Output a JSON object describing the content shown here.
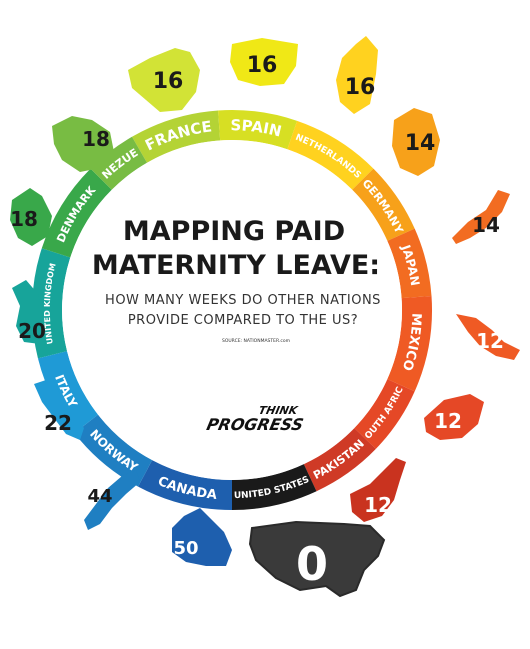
{
  "title_line1": "MAPPING PAID",
  "title_line2": "MATERNITY LEAVE:",
  "subtitle_line1": "HOW MANY WEEKS DO OTHER NATIONS",
  "subtitle_line2": "PROVIDE COMPARED TO THE US?",
  "source": "SOURCE: NATIONMASTER.com",
  "logo_line1": "THINK",
  "logo_line2": "PROGRESS",
  "countries": [
    {
      "name": "FRANCE",
      "weeks": "16",
      "color": "#b4d335"
    },
    {
      "name": "SPAIN",
      "weeks": "16",
      "color": "#d7df23"
    },
    {
      "name": "NETHERLANDS",
      "weeks": "16",
      "color": "#ffd21f"
    },
    {
      "name": "GERMANY",
      "weeks": "14",
      "color": "#f7a11a"
    },
    {
      "name": "JAPAN",
      "weeks": "14",
      "color": "#f26c21"
    },
    {
      "name": "MEXICO",
      "weeks": "12",
      "color": "#ef5a24"
    },
    {
      "name": "SOUTH AFRICA",
      "weeks": "12",
      "color": "#e54826"
    },
    {
      "name": "PAKISTAN",
      "weeks": "12",
      "color": "#cf3a26"
    },
    {
      "name": "UNITED STATES",
      "weeks": "0",
      "color": "#1a1a1a"
    },
    {
      "name": "CANADA",
      "weeks": "50",
      "color": "#1e5fae"
    },
    {
      "name": "NORWAY",
      "weeks": "44",
      "color": "#1f7fc2"
    },
    {
      "name": "ITALY",
      "weeks": "22",
      "color": "#1f9ad6"
    },
    {
      "name": "UNITED KINGDOM",
      "weeks": "20",
      "color": "#17a49a"
    },
    {
      "name": "DENMARK",
      "weeks": "18",
      "color": "#39a84a"
    },
    {
      "name": "VENEZUELA",
      "weeks": "18",
      "color": "#78bc43"
    }
  ]
}
